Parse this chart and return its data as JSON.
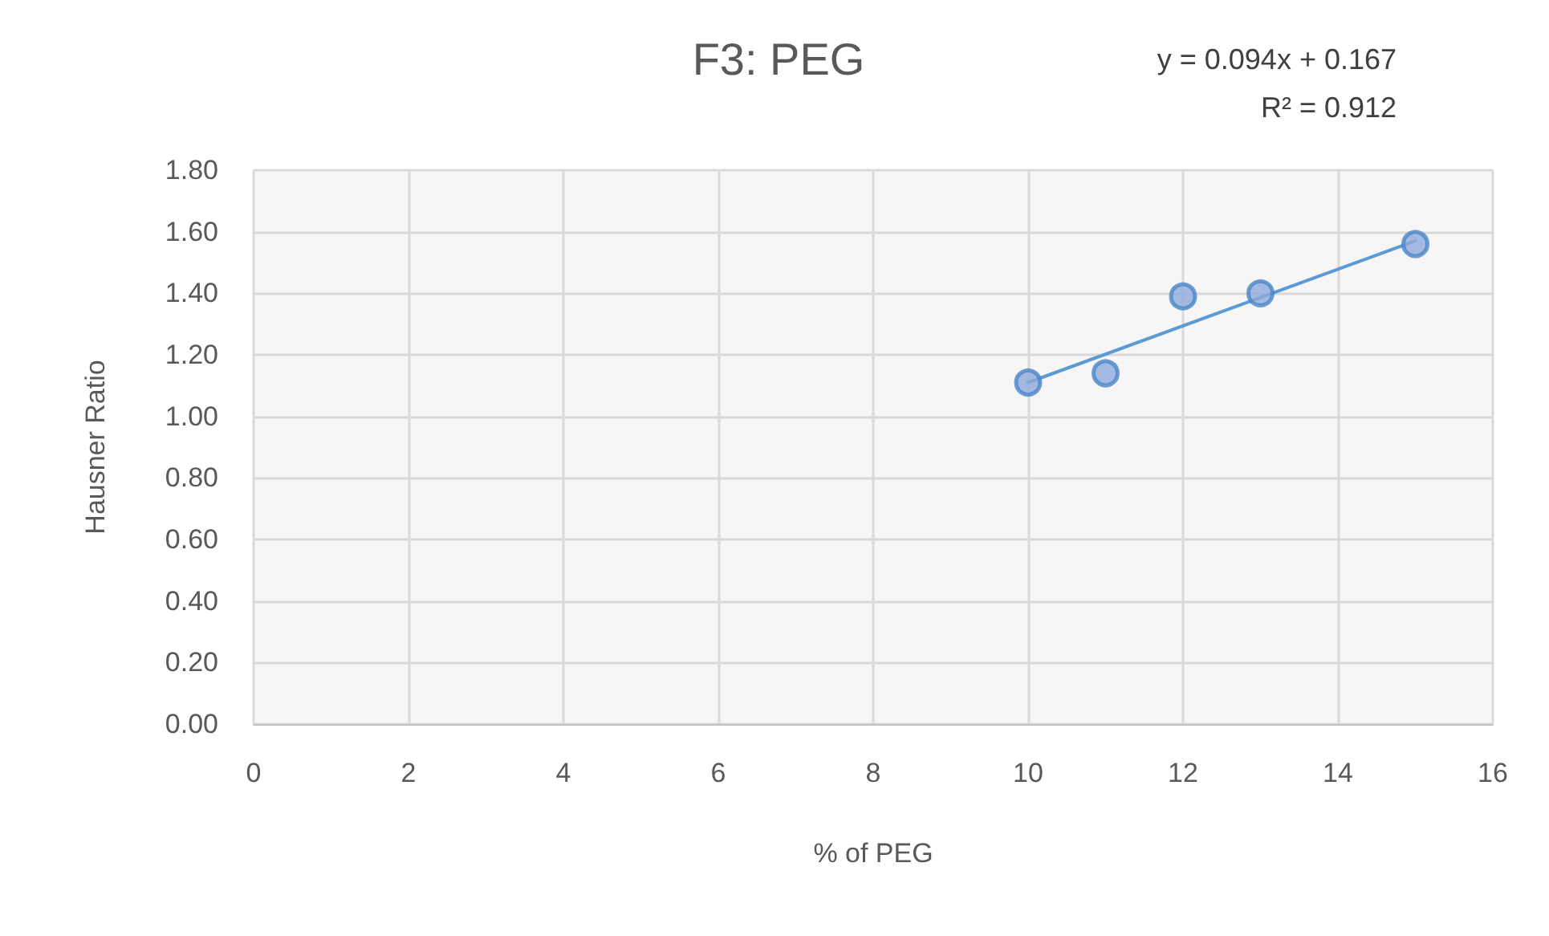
{
  "chart_data": {
    "type": "scatter",
    "title": "F3: PEG",
    "xlabel": "% of PEG",
    "ylabel": "Hausner Ratio",
    "annotations": [
      "y = 0.094x + 0.167",
      "R² = 0.912"
    ],
    "series": [
      {
        "color": "#8faadc",
        "x": [
          10,
          11,
          12,
          13,
          15
        ],
        "values": [
          1.11,
          1.14,
          1.39,
          1.4,
          1.56
        ],
        "marker": "circle"
      },
      {
        "type": "line",
        "color": "#5b9bd5",
        "x": [
          10,
          15
        ],
        "values": [
          1.11,
          1.57
        ],
        "marker": "none",
        "line_style": "solid"
      }
    ],
    "xlim": [
      0,
      16
    ],
    "xticks": [
      0,
      2,
      4,
      6,
      8,
      10,
      12,
      14,
      16
    ],
    "ylim": [
      0,
      1.8
    ],
    "yticks": [
      {
        "value": 0,
        "label": "0.00"
      },
      {
        "value": 0.2,
        "label": "0.20"
      },
      {
        "value": 0.4,
        "label": "0.40"
      },
      {
        "value": 0.6,
        "label": "0.60"
      },
      {
        "value": 0.8,
        "label": "0.80"
      },
      {
        "value": 1,
        "label": "1.00"
      },
      {
        "value": 1.2,
        "label": "1.20"
      },
      {
        "value": 1.4,
        "label": "1.40"
      },
      {
        "value": 1.6,
        "label": "1.60"
      },
      {
        "value": 1.8,
        "label": "1.80"
      }
    ],
    "grid": true
  }
}
